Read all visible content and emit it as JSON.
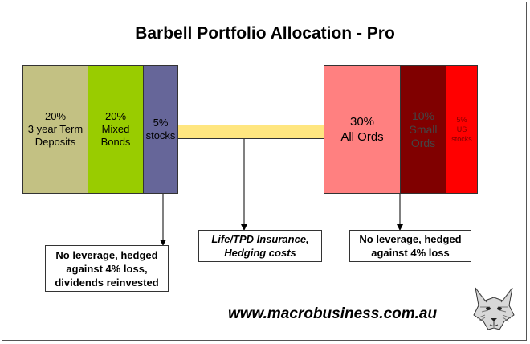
{
  "title": "Barbell Portfolio Allocation - Pro",
  "left_blocks": [
    {
      "line1": "20%",
      "line2": "3 year Term",
      "line3": "Deposits",
      "color": "#c3c183"
    },
    {
      "line1": "20%",
      "line2": "Mixed",
      "line3": "Bonds",
      "color": "#99cc00"
    },
    {
      "line1": "5%",
      "line2": "stocks",
      "line3": "",
      "color": "#666699"
    }
  ],
  "right_blocks": [
    {
      "line1": "30%",
      "line2": "All Ords",
      "line3": "",
      "color": "#ff8080"
    },
    {
      "line1": "10%",
      "line2": "Small",
      "line3": "Ords",
      "color": "#800000"
    },
    {
      "line1": "5%",
      "line2": "US",
      "line3": "stocks",
      "color": "#ff0000"
    }
  ],
  "bar_color": "#ffe680",
  "notes": {
    "left": {
      "line1": "No leverage, hedged",
      "line2": "against 4% loss,",
      "line3": "dividends reinvested"
    },
    "middle": {
      "line1": "Life/TPD Insurance,",
      "line2": "Hedging costs"
    },
    "right": {
      "line1": "No leverage, hedged",
      "line2": "against 4% loss"
    }
  },
  "url": "www.macrobusiness.com.au",
  "logo_icon": "wolf-icon"
}
